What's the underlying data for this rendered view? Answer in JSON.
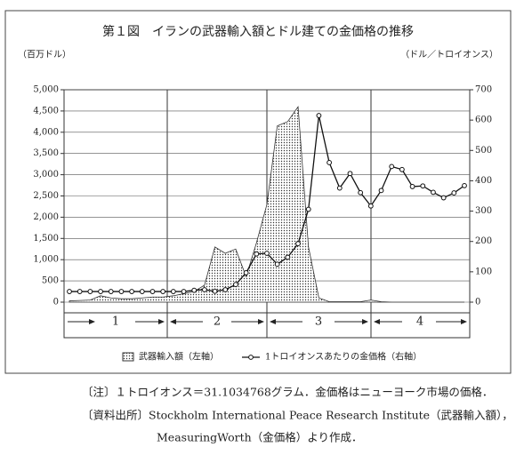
{
  "chart_data": {
    "type": "area-line",
    "title": "第１図　イランの武器輸入額とドル建ての金価格の推移",
    "ylabel": "（百万ドル）",
    "y2label": "（ドル／トロイオンス）",
    "categories": [
      null,
      null,
      null,
      null,
      null,
      null,
      null,
      null,
      null,
      null,
      null,
      null,
      null,
      null,
      null,
      null,
      null,
      null,
      null,
      null,
      null,
      null,
      null,
      null,
      null,
      null,
      null,
      null,
      null,
      null,
      null,
      null,
      null,
      null,
      null,
      null,
      null,
      null,
      null
    ],
    "series": [
      {
        "name": "武器輸入額（左軸）",
        "color": "#333333",
        "values": [
          30,
          40,
          50,
          150,
          100,
          80,
          80,
          100,
          120,
          120,
          150,
          200,
          250,
          400,
          1300,
          1150,
          1250,
          600,
          1400,
          2300,
          4150,
          4250,
          4600,
          1300,
          100,
          10,
          10,
          10,
          10,
          50,
          10,
          0,
          0,
          0,
          0,
          0,
          0,
          0,
          0
        ]
      },
      {
        "name": "1トロイオンスあたりの金価格（右軸）",
        "color": "#111111",
        "axis": "y2",
        "values": [
          35,
          35,
          35,
          35,
          35,
          35,
          35,
          35,
          35,
          35,
          35,
          35,
          39,
          41,
          36,
          41,
          58,
          97,
          159,
          161,
          125,
          148,
          193,
          306,
          615,
          460,
          376,
          424,
          361,
          317,
          368,
          447,
          437,
          381,
          383,
          362,
          344,
          360,
          384
        ]
      }
    ],
    "ylim": [
      0,
      5000
    ],
    "yticks": [
      0,
      500,
      {
        "value": 1000,
        "label": "1,000"
      },
      {
        "value": 1500,
        "label": "1,500"
      },
      {
        "value": 2000,
        "label": "2,000"
      },
      {
        "value": 2500,
        "label": "2,500"
      },
      {
        "value": 3000,
        "label": "3,000"
      },
      {
        "value": 3500,
        "label": "3,500"
      },
      {
        "value": 4000,
        "label": "4,000"
      },
      {
        "value": 4500,
        "label": "4,500"
      },
      {
        "value": 5000,
        "label": "5,000"
      }
    ],
    "y2lim": [
      0,
      700
    ],
    "y2ticks": [
      0,
      100,
      200,
      300,
      400,
      500,
      600,
      700
    ],
    "grid": true,
    "periods": [
      "1",
      "2",
      "3",
      "4"
    ]
  },
  "notes": [
    "〔注〕１トロイオンス＝31.1034768グラム．金価格はニューヨーク市場の価格．",
    "〔資料出所〕Stockholm International Peace Research Institute（武器輸入額），",
    "MeasuringWorth（金価格）より作成．"
  ]
}
